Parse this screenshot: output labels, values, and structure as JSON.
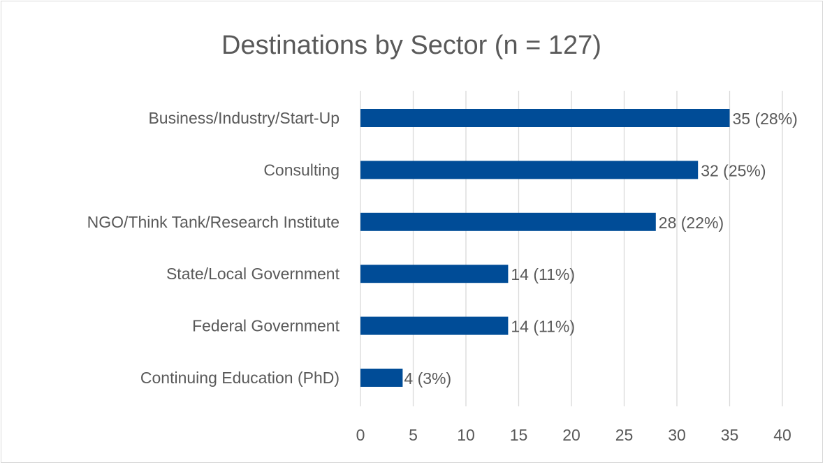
{
  "chart_data": {
    "type": "bar",
    "orientation": "horizontal",
    "title": "Destinations by Sector (n = 127)",
    "categories": [
      "Business/Industry/Start-Up",
      "Consulting",
      "NGO/Think Tank/Research Institute",
      "State/Local Government",
      "Federal Government",
      "Continuing Education (PhD)"
    ],
    "values": [
      35,
      32,
      28,
      14,
      14,
      4
    ],
    "data_labels": [
      "35 (28%)",
      "32 (25%)",
      "28 (22%)",
      "14 (11%)",
      "14 (11%)",
      "4 (3%)"
    ],
    "xlim": [
      0,
      40
    ],
    "xticks": [
      "0",
      "5",
      "10",
      "15",
      "20",
      "25",
      "30",
      "35",
      "40"
    ],
    "xlabel": "",
    "ylabel": "",
    "grid": "vertical",
    "legend": "none",
    "colors": {
      "bar": "#004C97",
      "grid": "#d9d9d9",
      "text": "#595959"
    }
  }
}
